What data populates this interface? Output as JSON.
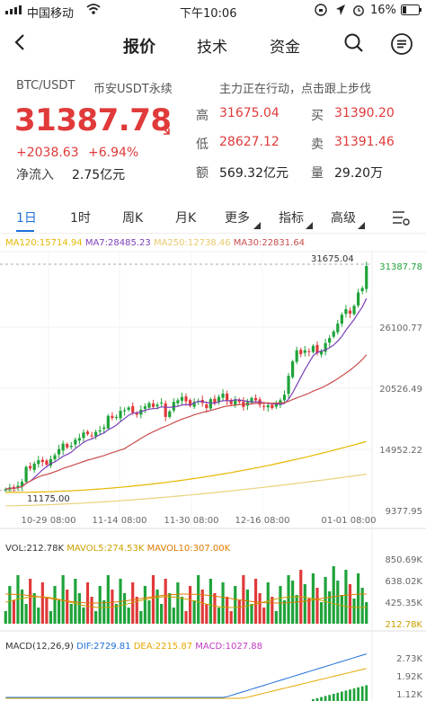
{
  "status": {
    "carrier": "中国移动",
    "time": "下午10:06",
    "battery": "16%"
  },
  "nav": {
    "tabs": [
      "报价",
      "技术",
      "资金"
    ]
  },
  "quote": {
    "pair": "BTC/USDT",
    "exchange": "币安USDT永续",
    "promo": "主力正在行动，点击跟上步伐",
    "price": "31387.78",
    "change": "+2038.63",
    "change_pct": "+6.94%",
    "netflow_label": "净流入",
    "netflow_value": "2.75亿元",
    "high_label": "高",
    "high": "31675.04",
    "low_label": "低",
    "low": "28627.12",
    "amount_label": "额",
    "amount": "569.32亿元",
    "bid_label": "买",
    "bid": "31390.20",
    "ask_label": "卖",
    "ask": "31391.46",
    "volume_label": "量",
    "volume": "29.20万"
  },
  "periods": [
    "1日",
    "1时",
    "周K",
    "月K",
    "更多",
    "指标",
    "高级"
  ],
  "legend_ma": {
    "ma120": "MA120:15714.94",
    "ma7": "MA7:28485.23",
    "ma250": "MA250:12738.46",
    "ma30": "MA30:22831.64"
  },
  "legend_vol": {
    "vol": "VOL:212.78K",
    "mavol5": "MAVOL5:274.53K",
    "mavol10": "MAVOL10:307.00K"
  },
  "legend_macd": {
    "macd_label": "MACD(12,26,9)",
    "dif": "DIF:2729.81",
    "dea": "DEA:2215.87",
    "macd": "MACD:1027.88"
  },
  "colors": {
    "up": "#e03a3a",
    "down": "#1fa33a",
    "ma7": "#7b3fb8",
    "ma30": "#c94c4c",
    "ma120": "#e6b800",
    "ma250": "#e8d27a"
  },
  "chart_data": [
    {
      "type": "candlestick",
      "ylim": [
        9377.95,
        31387.78
      ],
      "y_ticks": [
        "31387.78",
        "26100.77",
        "20526.49",
        "14952.22",
        "9377.95"
      ],
      "x_ticks": [
        "10-29 08:00",
        "11-14 08:00",
        "11-30 08:00",
        "12-16 08:00",
        "01-01 08:00"
      ],
      "annotations": [
        "31675.04",
        "11175.00"
      ],
      "close": [
        11300,
        11450,
        11350,
        11600,
        11950,
        13300,
        13150,
        13600,
        13900,
        13750,
        13500,
        14000,
        14350,
        14900,
        15400,
        15050,
        15200,
        15750,
        15900,
        16400,
        16250,
        16100,
        16450,
        16600,
        16850,
        17900,
        17700,
        17800,
        18350,
        18400,
        18650,
        18200,
        18000,
        18450,
        18750,
        19050,
        18700,
        18900,
        19100,
        17800,
        18300,
        19150,
        19300,
        19600,
        19200,
        18800,
        19150,
        19250,
        19050,
        18600,
        19400,
        19050,
        19600,
        19900,
        19250,
        18950,
        19350,
        19150,
        18700,
        19150,
        19500,
        19300,
        18900,
        18700,
        18850,
        18600,
        18950,
        19300,
        19800,
        21500,
        22800,
        23800,
        23450,
        23800,
        23650,
        24200,
        23550,
        23700,
        24450,
        24900,
        25500,
        26200,
        27000,
        27500,
        27100,
        27800,
        29000,
        29400,
        31387.78
      ],
      "ma_lines": [
        "MA7",
        "MA30",
        "MA120",
        "MA250"
      ]
    },
    {
      "type": "bar",
      "title": "VOL",
      "y_ticks": [
        "850.69K",
        "638.02K",
        "425.35K",
        "212.78K"
      ]
    },
    {
      "type": "bar",
      "title": "MACD(12,26,9)",
      "y_ticks": [
        "2.73K",
        "1.92K",
        "1.12K"
      ]
    }
  ]
}
